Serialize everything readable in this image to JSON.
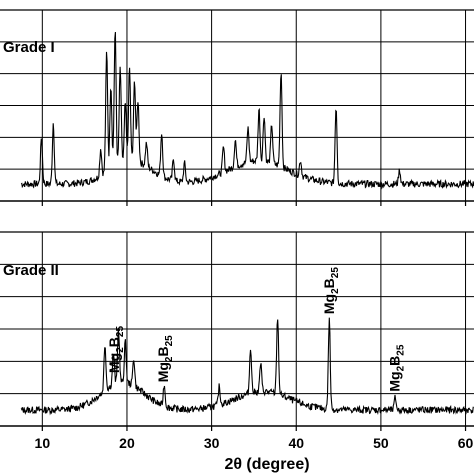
{
  "chart_data": [
    {
      "type": "line",
      "panel_label": "Grade I",
      "xlabel": "2θ (degree)",
      "ylabel": "",
      "xlim": [
        5,
        61
      ],
      "ylim": [
        0,
        1
      ],
      "grid": true,
      "xticks": [
        10,
        20,
        30,
        40,
        50,
        60
      ],
      "peaks": [
        {
          "x": 9.9,
          "h": 0.3
        },
        {
          "x": 11.3,
          "h": 0.4
        },
        {
          "x": 16.9,
          "h": 0.18
        },
        {
          "x": 17.6,
          "h": 0.78
        },
        {
          "x": 18.1,
          "h": 0.55
        },
        {
          "x": 18.6,
          "h": 0.88
        },
        {
          "x": 19.2,
          "h": 0.62
        },
        {
          "x": 19.8,
          "h": 0.38
        },
        {
          "x": 20.3,
          "h": 0.6
        },
        {
          "x": 20.9,
          "h": 0.52
        },
        {
          "x": 21.3,
          "h": 0.4
        },
        {
          "x": 22.3,
          "h": 0.15
        },
        {
          "x": 24.1,
          "h": 0.28
        },
        {
          "x": 25.5,
          "h": 0.14
        },
        {
          "x": 26.8,
          "h": 0.12
        },
        {
          "x": 31.4,
          "h": 0.16
        },
        {
          "x": 32.8,
          "h": 0.18
        },
        {
          "x": 34.3,
          "h": 0.22
        },
        {
          "x": 35.6,
          "h": 0.34
        },
        {
          "x": 36.2,
          "h": 0.3
        },
        {
          "x": 37.1,
          "h": 0.25
        },
        {
          "x": 38.2,
          "h": 0.62
        },
        {
          "x": 40.5,
          "h": 0.1
        },
        {
          "x": 44.7,
          "h": 0.5
        },
        {
          "x": 52.2,
          "h": 0.09
        }
      ],
      "humps": [
        {
          "x": 20.5,
          "h": 0.15,
          "w": 3.5
        },
        {
          "x": 35.5,
          "h": 0.15,
          "w": 5.0
        }
      ]
    },
    {
      "type": "line",
      "panel_label": "Grade II",
      "xlabel": "2θ (degree)",
      "ylabel": "",
      "xlim": [
        5,
        61
      ],
      "ylim": [
        0,
        1
      ],
      "grid": true,
      "xticks": [
        10,
        20,
        30,
        40,
        50,
        60
      ],
      "peaks": [
        {
          "x": 17.4,
          "h": 0.3
        },
        {
          "x": 18.4,
          "h": 0.2
        },
        {
          "x": 19.0,
          "h": 0.35
        },
        {
          "x": 19.8,
          "h": 0.26
        },
        {
          "x": 20.8,
          "h": 0.18
        },
        {
          "x": 24.4,
          "h": 0.14
        },
        {
          "x": 30.9,
          "h": 0.12
        },
        {
          "x": 34.6,
          "h": 0.3
        },
        {
          "x": 35.8,
          "h": 0.18
        },
        {
          "x": 37.8,
          "h": 0.5
        },
        {
          "x": 43.9,
          "h": 0.58
        },
        {
          "x": 51.7,
          "h": 0.08
        }
      ],
      "humps": [
        {
          "x": 19.5,
          "h": 0.18,
          "w": 3.5
        },
        {
          "x": 36.0,
          "h": 0.12,
          "w": 4.5
        }
      ],
      "annotations": [
        {
          "x": 18.6,
          "label_main": "Mg",
          "label_sub1": "2",
          "label_mid": "B",
          "label_sub2": "25"
        },
        {
          "x": 24.4,
          "label_main": "Mg",
          "label_sub1": "2",
          "label_mid": "B",
          "label_sub2": "25"
        },
        {
          "x": 44.0,
          "label_main": "Mg",
          "label_sub1": "2",
          "label_mid": "B",
          "label_sub2": "25"
        },
        {
          "x": 51.7,
          "label_main": "Mg",
          "label_sub1": "2",
          "label_mid": "B",
          "label_sub2": "25"
        }
      ]
    }
  ]
}
